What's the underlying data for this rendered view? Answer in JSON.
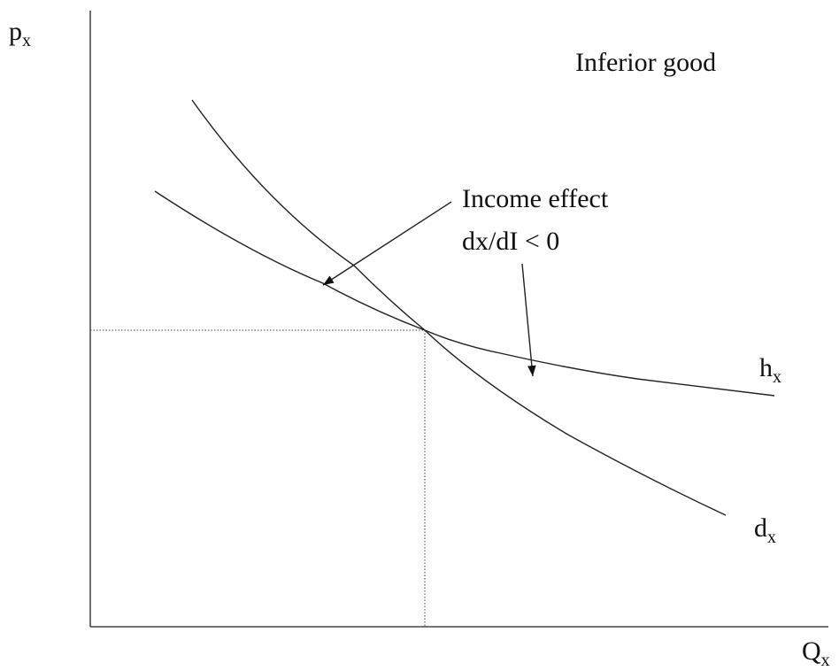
{
  "title": "Inferior good",
  "axes": {
    "y": {
      "base": "p",
      "sub": "x"
    },
    "x": {
      "base": "Q",
      "sub": "x"
    }
  },
  "curves": {
    "h": {
      "base": "h",
      "sub": "x"
    },
    "d": {
      "base": "d",
      "sub": "x"
    }
  },
  "annotation": {
    "line1": "Income effect",
    "line2": "dx/dI < 0"
  }
}
